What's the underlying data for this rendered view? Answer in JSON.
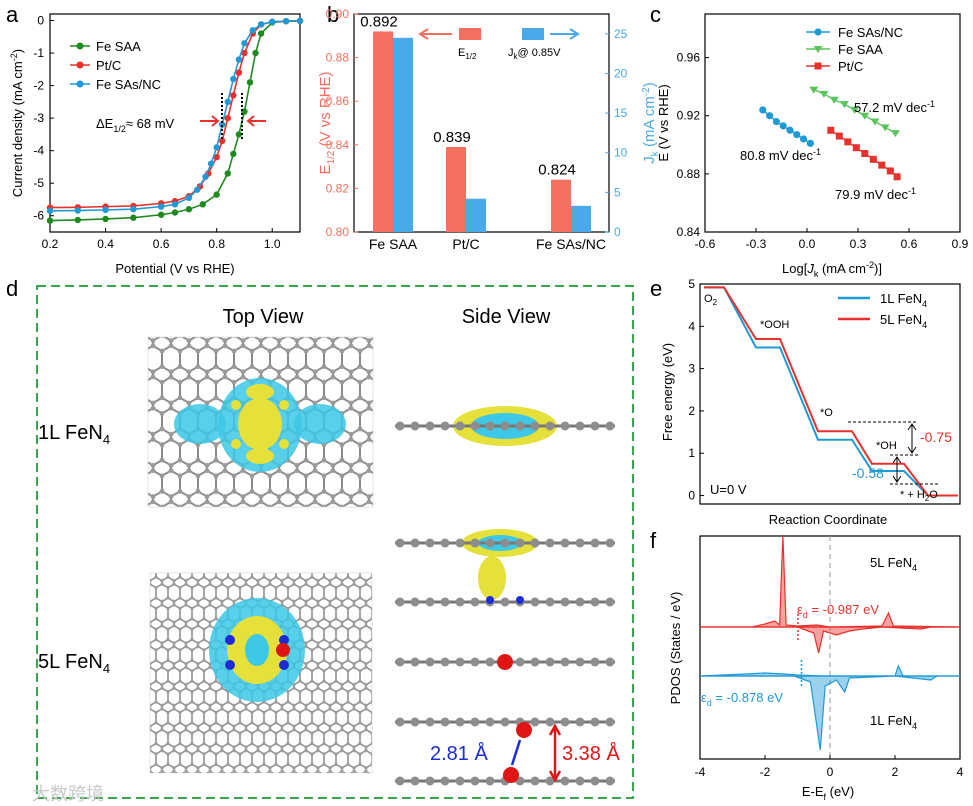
{
  "panels": {
    "a": {
      "letter": "a"
    },
    "b": {
      "letter": "b"
    },
    "c": {
      "letter": "c"
    },
    "d": {
      "letter": "d",
      "top_view": "Top View",
      "side_view": "Side View",
      "row1": "1L FeN",
      "row1_sub": "4",
      "row2": "5L FeN",
      "row2_sub": "4",
      "dist_blue": "2.81 Å",
      "dist_red": "3.38 Å"
    },
    "e": {
      "letter": "e"
    },
    "f": {
      "letter": "f"
    }
  },
  "colors": {
    "red": "#e8312c",
    "blue": "#1f9ad6",
    "green": "#1f8a1f",
    "dash_green": "#38a84a",
    "salmon": "#f36f60",
    "lightblue": "#4aa9e8"
  },
  "watermark": "大数跨境",
  "chart_data": [
    {
      "id": "a",
      "type": "line",
      "title": "",
      "xlabel": "Potential (V vs RHE)",
      "ylabel_main": "Current density  (mA cm",
      "ylabel_sup": "-2",
      "ylabel_end": ")",
      "xlim": [
        0.2,
        1.1
      ],
      "ylim": [
        -6.5,
        0.2
      ],
      "xticks": [
        "0.2",
        "0.4",
        "0.6",
        "0.8",
        "1.0"
      ],
      "yticks": [
        "0",
        "-1",
        "-2",
        "-3",
        "-4",
        "-5",
        "-6"
      ],
      "legend_position": "top-left",
      "annotation": "ΔE",
      "annotation_sub": "1/2",
      "annotation_end": "≈ 68 mV",
      "series": [
        {
          "name": "Fe SAA",
          "color": "#1f8a1f",
          "x": [
            0.2,
            0.3,
            0.4,
            0.5,
            0.6,
            0.65,
            0.7,
            0.75,
            0.8,
            0.84,
            0.86,
            0.88,
            0.9,
            0.92,
            0.94,
            0.96,
            1.0,
            1.05,
            1.1
          ],
          "y": [
            -6.15,
            -6.13,
            -6.1,
            -6.06,
            -5.97,
            -5.9,
            -5.8,
            -5.65,
            -5.35,
            -4.7,
            -4.1,
            -3.5,
            -2.8,
            -1.9,
            -1.0,
            -0.4,
            -0.06,
            -0.02,
            -0.01
          ]
        },
        {
          "name": "Pt/C",
          "color": "#e8312c",
          "x": [
            0.2,
            0.3,
            0.4,
            0.5,
            0.6,
            0.65,
            0.7,
            0.74,
            0.77,
            0.8,
            0.82,
            0.84,
            0.86,
            0.88,
            0.9,
            0.93,
            0.96,
            1.0,
            1.05,
            1.1
          ],
          "y": [
            -5.75,
            -5.74,
            -5.72,
            -5.7,
            -5.62,
            -5.55,
            -5.4,
            -5.1,
            -4.7,
            -4.2,
            -3.7,
            -3.0,
            -2.3,
            -1.6,
            -1.0,
            -0.4,
            -0.12,
            -0.04,
            -0.02,
            -0.01
          ]
        },
        {
          "name": "Fe SAs/NC",
          "color": "#1f9ad6",
          "x": [
            0.2,
            0.3,
            0.4,
            0.5,
            0.6,
            0.65,
            0.7,
            0.73,
            0.76,
            0.78,
            0.8,
            0.82,
            0.84,
            0.86,
            0.88,
            0.9,
            0.93,
            0.96,
            1.0,
            1.05,
            1.1
          ],
          "y": [
            -5.85,
            -5.84,
            -5.82,
            -5.8,
            -5.72,
            -5.65,
            -5.45,
            -5.2,
            -4.8,
            -4.4,
            -3.9,
            -3.2,
            -2.5,
            -1.8,
            -1.2,
            -0.7,
            -0.3,
            -0.12,
            -0.04,
            -0.02,
            -0.01
          ]
        }
      ]
    },
    {
      "id": "b",
      "type": "bar",
      "categories": [
        "Fe SAA",
        "Pt/C",
        "Fe SAs/NC"
      ],
      "ylabel_left_main": "E",
      "ylabel_left_sub": "1/2",
      "ylabel_left_end": " (V vs RHE)",
      "ylabel_right_main": "J",
      "ylabel_right_sub": "k",
      "ylabel_right_end": " (mA cm",
      "ylabel_right_sup": "-2",
      "ylabel_right_close": ")",
      "ylim_left": [
        0.8,
        0.9
      ],
      "yticks_left": [
        "0.80",
        "0.82",
        "0.84",
        "0.86",
        "0.88",
        "0.90"
      ],
      "ylim_right": [
        0,
        27.5
      ],
      "yticks_right": [
        "0",
        "5",
        "10",
        "15",
        "20",
        "25"
      ],
      "legend_position": "top-right",
      "series": [
        {
          "name_main": "E",
          "name_sub": "1/2",
          "color": "#f36f60",
          "axis": "left",
          "values": [
            0.892,
            0.839,
            0.824
          ],
          "labels": [
            "0.892",
            "0.839",
            "0.824"
          ]
        },
        {
          "name_main": "J",
          "name_sub": "k",
          "name_end": "@ 0.85V",
          "color": "#4aa9e8",
          "axis": "right",
          "values": [
            24.5,
            4.2,
            3.3
          ]
        }
      ]
    },
    {
      "id": "c",
      "type": "scatter",
      "xlabel_main": "Log[",
      "xlabel_italic": "J",
      "xlabel_sub": "k",
      "xlabel_end": " (mA cm",
      "xlabel_sup": "-2",
      "xlabel_close": ")]",
      "ylabel": "E (V vs RHE)",
      "xlim": [
        -0.6,
        0.9
      ],
      "ylim": [
        0.84,
        0.99
      ],
      "xticks": [
        "-0.6",
        "-0.3",
        "0.0",
        "0.3",
        "0.6",
        "0.9"
      ],
      "yticks": [
        "0.84",
        "0.88",
        "0.92",
        "0.96"
      ],
      "legend_position": "top-right",
      "series": [
        {
          "name": "Fe SAs/NC",
          "color": "#1f9ad6",
          "marker": "circle",
          "x": [
            -0.26,
            -0.22,
            -0.18,
            -0.14,
            -0.1,
            -0.06,
            -0.02,
            0.02
          ],
          "y": [
            0.924,
            0.92,
            0.916,
            0.913,
            0.91,
            0.907,
            0.904,
            0.901
          ],
          "slope": "80.8 mV dec",
          "slope_sup": "-1"
        },
        {
          "name": "Fe SAA",
          "color": "#5cc45c",
          "marker": "triangle",
          "x": [
            0.04,
            0.1,
            0.16,
            0.22,
            0.28,
            0.34,
            0.4,
            0.46,
            0.52
          ],
          "y": [
            0.938,
            0.935,
            0.931,
            0.928,
            0.924,
            0.92,
            0.916,
            0.912,
            0.908
          ],
          "slope": "57.2 mV dec",
          "slope_sup": "-1"
        },
        {
          "name": "Pt/C",
          "color": "#e8312c",
          "marker": "square",
          "x": [
            0.14,
            0.19,
            0.24,
            0.29,
            0.34,
            0.39,
            0.44,
            0.49,
            0.53
          ],
          "y": [
            0.91,
            0.906,
            0.902,
            0.898,
            0.894,
            0.89,
            0.886,
            0.882,
            0.878
          ],
          "slope": "79.9 mV dec",
          "slope_sup": "-1"
        }
      ]
    },
    {
      "id": "e",
      "type": "line",
      "xlabel": "Reaction Coordinate",
      "ylabel": "Free energy (eV)",
      "ylim": [
        -0.2,
        5
      ],
      "yticks": [
        "0",
        "1",
        "2",
        "3",
        "4",
        "5"
      ],
      "legend_position": "top-right",
      "condition": "U=0 V",
      "step_labels": [
        "O",
        "*OOH",
        "*O",
        "*OH",
        "* + H"
      ],
      "step_subs": [
        "2",
        "",
        "",
        "",
        "2"
      ],
      "step_tail": "O",
      "series": [
        {
          "name_main": "1L FeN",
          "name_sub": "4",
          "color": "#1f9ad6",
          "levels": [
            4.92,
            3.5,
            1.32,
            0.58,
            0
          ]
        },
        {
          "name_main": "5L FeN",
          "name_sub": "4",
          "color": "#e8312c",
          "levels": [
            4.92,
            3.7,
            1.52,
            0.75,
            0
          ]
        }
      ],
      "annotations": [
        {
          "text": "-0.75",
          "color": "#e8312c"
        },
        {
          "text": "-0.58",
          "color": "#1f9ad6"
        }
      ]
    },
    {
      "id": "f",
      "type": "area",
      "title": "",
      "xlabel": "E-E",
      "xlabel_sub": "f",
      "xlabel_end": " (eV)",
      "ylabel": "PDOS (States / eV)",
      "xlim": [
        -4,
        4
      ],
      "xticks": [
        "-4",
        "-2",
        "0",
        "2",
        "4"
      ],
      "series": [
        {
          "name_main": "5L FeN",
          "name_sub": "4",
          "color": "#e8312c",
          "epsilon_main": "ε",
          "epsilon_sub": "d",
          "epsilon_value": " = -0.987 eV",
          "center": -0.987
        },
        {
          "name_main": "1L FeN",
          "name_sub": "4",
          "color": "#1f9ad6",
          "epsilon_main": "ε",
          "epsilon_sub": "d",
          "epsilon_value": " = -0.878 eV",
          "center": -0.878
        }
      ]
    }
  ]
}
